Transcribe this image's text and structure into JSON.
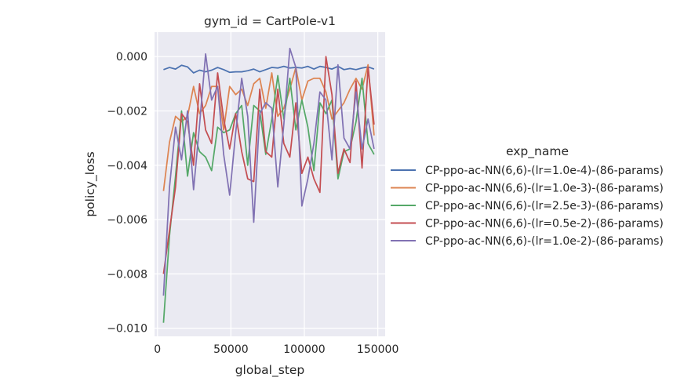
{
  "chart_data": {
    "type": "line",
    "title": "gym_id = CartPole-v1",
    "xlabel": "global_step",
    "ylabel": "policy_loss",
    "xlim": [
      -2000,
      155000
    ],
    "ylim": [
      -0.0103,
      0.0009
    ],
    "xticks": [
      0,
      50000,
      100000,
      150000
    ],
    "xtick_labels": [
      "0",
      "50000",
      "100000",
      "150000"
    ],
    "yticks": [
      0.0,
      -0.002,
      -0.004,
      -0.006,
      -0.008,
      -0.01
    ],
    "ytick_labels": [
      "0.000",
      "−0.002",
      "−0.004",
      "−0.006",
      "−0.008",
      "−0.010"
    ],
    "grid": true,
    "legend_title": "exp_name",
    "legend_position": "right-outside",
    "x": [
      4096,
      8192,
      12288,
      16384,
      20480,
      24576,
      28672,
      32768,
      36864,
      40960,
      45056,
      49152,
      53248,
      57344,
      61440,
      65536,
      69632,
      73728,
      77824,
      81920,
      86016,
      90112,
      94208,
      98304,
      102400,
      106496,
      110592,
      114688,
      118784,
      122880,
      126976,
      131072,
      135168,
      139264,
      143360,
      147456
    ],
    "series": [
      {
        "name": "CP-ppo-ac-NN(6,6)-(lr=1.0e-4)-(86-params)",
        "color": "#4c72b0",
        "values": [
          -0.00048,
          -0.0004,
          -0.00046,
          -0.00032,
          -0.00038,
          -0.0006,
          -0.0005,
          -0.00056,
          -0.0005,
          -0.0004,
          -0.00048,
          -0.00058,
          -0.00056,
          -0.00056,
          -0.00052,
          -0.00046,
          -0.00056,
          -0.00048,
          -0.0004,
          -0.00042,
          -0.00036,
          -0.00042,
          -0.0004,
          -0.00042,
          -0.00036,
          -0.00046,
          -0.00036,
          -0.0004,
          -0.00046,
          -0.00036,
          -0.00048,
          -0.00044,
          -0.00048,
          -0.00042,
          -0.00038,
          -0.00046
        ]
      },
      {
        "name": "CP-ppo-ac-NN(6,6)-(lr=1.0e-3)-(86-params)",
        "color": "#dd8452",
        "values": [
          -0.00495,
          -0.00315,
          -0.0022,
          -0.0024,
          -0.0022,
          -0.0011,
          -0.0021,
          -0.0018,
          -0.0011,
          -0.0011,
          -0.0027,
          -0.0011,
          -0.0014,
          -0.0012,
          -0.0018,
          -0.001,
          -0.0008,
          -0.0019,
          -0.0006,
          -0.0022,
          -0.0019,
          -0.0012,
          -0.0004,
          -0.0016,
          -0.0009,
          -0.0008,
          -0.0008,
          -0.0013,
          -0.0023,
          -0.002,
          -0.0017,
          -0.0012,
          -0.0008,
          -0.0012,
          -0.0003,
          -0.0029
        ]
      },
      {
        "name": "CP-ppo-ac-NN(6,6)-(lr=2.5e-3)-(86-params)",
        "color": "#55a868",
        "values": [
          -0.0098,
          -0.0066,
          -0.0044,
          -0.002,
          -0.0044,
          -0.0028,
          -0.0035,
          -0.0037,
          -0.0042,
          -0.0026,
          -0.0028,
          -0.0027,
          -0.0021,
          -0.0018,
          -0.004,
          -0.0018,
          -0.002,
          -0.0036,
          -0.0023,
          -0.0007,
          -0.0023,
          -0.0008,
          -0.0027,
          -0.0016,
          -0.0026,
          -0.0042,
          -0.0017,
          -0.0021,
          -0.0016,
          -0.0045,
          -0.0035,
          -0.0034,
          -0.0024,
          -0.0008,
          -0.0032,
          -0.0036
        ]
      },
      {
        "name": "CP-ppo-ac-NN(6,6)-(lr=0.5e-2)-(86-params)",
        "color": "#c44e52",
        "values": [
          -0.008,
          -0.0064,
          -0.0048,
          -0.0021,
          -0.0024,
          -0.004,
          -0.001,
          -0.0027,
          -0.0032,
          -0.0006,
          -0.0023,
          -0.0034,
          -0.0021,
          -0.0035,
          -0.0045,
          -0.0046,
          -0.0012,
          -0.0035,
          -0.0037,
          -0.0012,
          -0.0032,
          -0.0037,
          -0.0017,
          -0.0043,
          -0.0037,
          -0.0045,
          -0.005,
          0.0,
          -0.0014,
          -0.0043,
          -0.0034,
          -0.0039,
          -0.0009,
          -0.0041,
          -0.0004,
          -0.0025
        ]
      },
      {
        "name": "CP-ppo-ac-NN(6,6)-(lr=1.0e-2)-(86-params)",
        "color": "#8172b3",
        "values": [
          -0.0088,
          -0.0048,
          -0.0026,
          -0.0038,
          -0.002,
          -0.0049,
          -0.0025,
          0.0001,
          -0.0016,
          -0.0011,
          -0.0036,
          -0.0051,
          -0.0028,
          -0.0008,
          -0.0022,
          -0.0061,
          -0.0021,
          -0.0017,
          -0.0019,
          -0.0048,
          -0.0025,
          0.0003,
          -0.0004,
          -0.0055,
          -0.0045,
          -0.0032,
          -0.0013,
          -0.0016,
          -0.0038,
          -0.0003,
          -0.003,
          -0.0034,
          -0.0013,
          -0.0034,
          -0.0023,
          -0.0034
        ]
      }
    ]
  }
}
